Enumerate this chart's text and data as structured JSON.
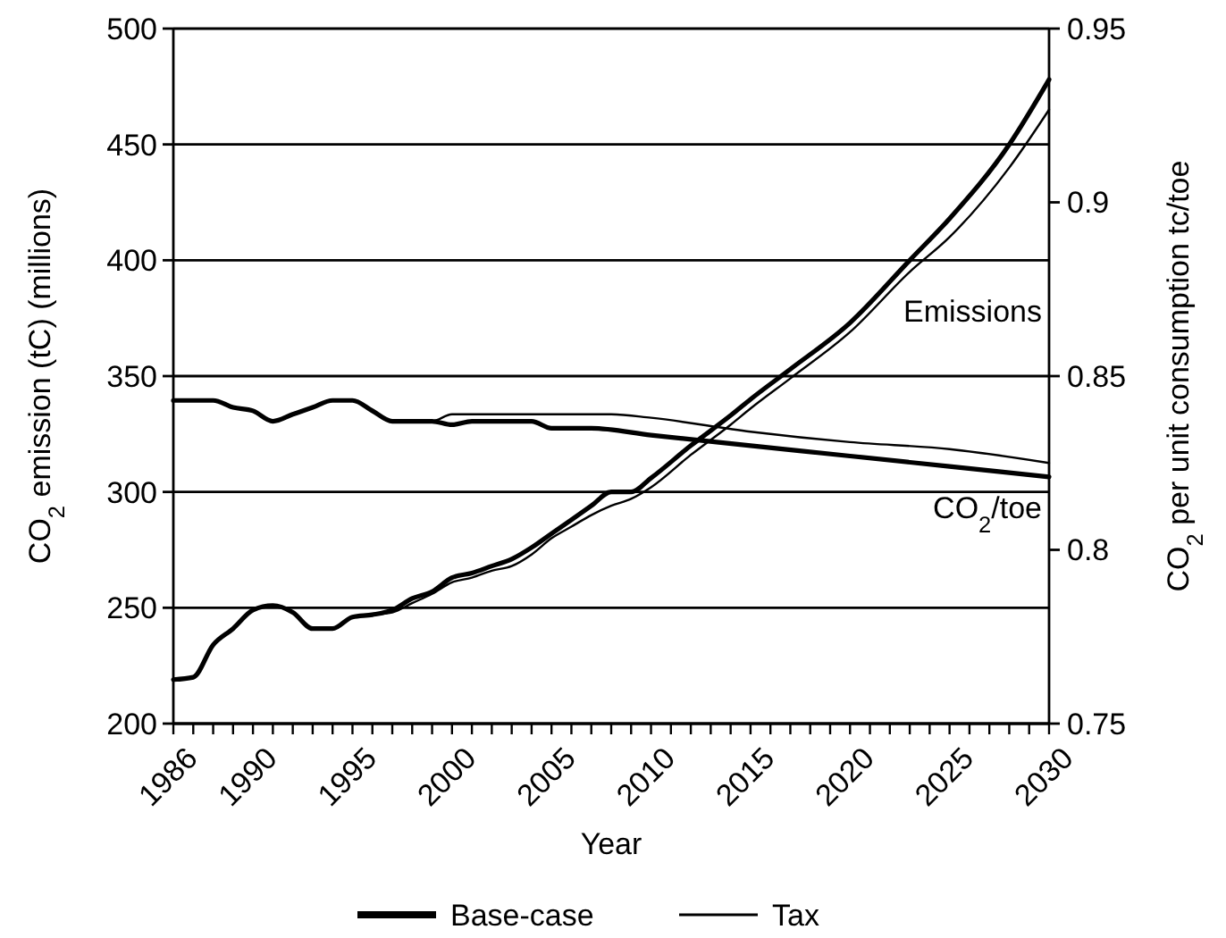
{
  "chart_data": {
    "type": "line",
    "xlabel": "Year",
    "ylabel": "CO$_{2}$ emission (tC) (millions)",
    "y2label": "CO$_{2}$ per unit consumption tc/toe",
    "x": [
      1986,
      1987,
      1988,
      1989,
      1990,
      1991,
      1992,
      1993,
      1994,
      1995,
      1996,
      1997,
      1998,
      1999,
      2000,
      2001,
      2002,
      2003,
      2004,
      2005,
      2006,
      2007,
      2008,
      2009,
      2010,
      2012,
      2014,
      2015,
      2017,
      2020,
      2023,
      2025,
      2028,
      2030
    ],
    "series": [
      {
        "name": "Base-case",
        "color": "#000000",
        "values": [
          219,
          220,
          234,
          241,
          249,
          251,
          248,
          241,
          241,
          246,
          247,
          249,
          254,
          257,
          263,
          265,
          268,
          271,
          276,
          282,
          288,
          294,
          300,
          300,
          306,
          320,
          333,
          340,
          353,
          373,
          400,
          418,
          450,
          478
        ]
      },
      {
        "name": "Tax",
        "color": "#000000",
        "values": [
          219,
          220,
          234,
          241,
          249,
          251,
          248,
          241,
          241,
          246,
          247,
          248,
          252,
          256,
          261,
          263,
          266,
          268,
          273,
          280,
          285,
          290,
          294,
          297,
          302,
          316,
          329,
          336,
          349,
          369,
          395,
          410,
          440,
          465
        ]
      },
      {
        "color": "#000000",
        "axis": "y2",
        "x": [
          1986,
          1987,
          1988,
          1989,
          1990,
          1991,
          1992,
          1993,
          1994,
          1995,
          1996,
          1997,
          1998,
          1999,
          2000,
          2001,
          2002,
          2003,
          2004,
          2005,
          2006,
          2007,
          2010,
          2015,
          2020,
          2025,
          2030
        ],
        "values": [
          0.843,
          0.843,
          0.843,
          0.841,
          0.84,
          0.837,
          0.839,
          0.841,
          0.843,
          0.843,
          0.84,
          0.837,
          0.837,
          0.837,
          0.836,
          0.837,
          0.837,
          0.837,
          0.837,
          0.835,
          0.835,
          0.835,
          0.833,
          0.83,
          0.827,
          0.824,
          0.821
        ]
      },
      {
        "color": "#000000",
        "axis": "y2",
        "x": [
          1986,
          1987,
          1988,
          1989,
          1990,
          1991,
          1992,
          1993,
          1994,
          1995,
          1996,
          1997,
          1998,
          1999,
          2000,
          2002,
          2006,
          2008,
          2010,
          2015,
          2020,
          2025,
          2030
        ],
        "values": [
          0.843,
          0.843,
          0.843,
          0.841,
          0.84,
          0.837,
          0.839,
          0.841,
          0.843,
          0.843,
          0.84,
          0.837,
          0.837,
          0.837,
          0.839,
          0.839,
          0.839,
          0.839,
          0.838,
          0.834,
          0.831,
          0.829,
          0.825
        ]
      }
    ],
    "xlim": [
      1986,
      2030
    ],
    "xticks": [
      1986,
      {
        "value": 1987,
        "label": null
      },
      {
        "value": 1988,
        "label": null
      },
      {
        "value": 1989,
        "label": null
      },
      1990,
      {
        "value": 1991,
        "label": null
      },
      {
        "value": 1992,
        "label": null
      },
      {
        "value": 1993,
        "label": null
      },
      {
        "value": 1994,
        "label": null
      },
      1995,
      {
        "value": 1996,
        "label": null
      },
      {
        "value": 1997,
        "label": null
      },
      {
        "value": 1998,
        "label": null
      },
      {
        "value": 1999,
        "label": null
      },
      2000,
      {
        "value": 2001,
        "label": null
      },
      {
        "value": 2002,
        "label": null
      },
      {
        "value": 2003,
        "label": null
      },
      {
        "value": 2004,
        "label": null
      },
      2005,
      {
        "value": 2006,
        "label": null
      },
      {
        "value": 2007,
        "label": null
      },
      {
        "value": 2008,
        "label": null
      },
      {
        "value": 2009,
        "label": null
      },
      2010,
      {
        "value": 2011,
        "label": null
      },
      {
        "value": 2012,
        "label": null
      },
      {
        "value": 2013,
        "label": null
      },
      {
        "value": 2014,
        "label": null
      },
      2015,
      {
        "value": 2016,
        "label": null
      },
      {
        "value": 2017,
        "label": null
      },
      {
        "value": 2018,
        "label": null
      },
      {
        "value": 2019,
        "label": null
      },
      2020,
      {
        "value": 2021,
        "label": null
      },
      {
        "value": 2022,
        "label": null
      },
      {
        "value": 2023,
        "label": null
      },
      {
        "value": 2024,
        "label": null
      },
      2025,
      {
        "value": 2026,
        "label": null
      },
      {
        "value": 2027,
        "label": null
      },
      {
        "value": 2028,
        "label": null
      },
      {
        "value": 2029,
        "label": null
      },
      2030
    ],
    "ylim": [
      200,
      500
    ],
    "yticks": [
      200,
      250,
      300,
      350,
      400,
      450,
      500
    ],
    "y2lim": [
      0.75,
      0.95
    ],
    "y2ticks": [
      0.75,
      0.8,
      0.85,
      0.9,
      0.95
    ],
    "grid": "y",
    "legend": "bottom",
    "marker": "none",
    "line_style": "solid",
    "annotations": [
      "Emissions",
      "CO$_{2}$/toe"
    ]
  }
}
